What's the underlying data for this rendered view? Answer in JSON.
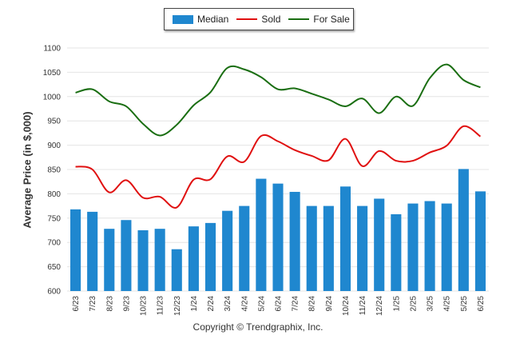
{
  "chart_data": {
    "type": "bar",
    "title": "",
    "xlabel": "",
    "ylabel": "Average Price (in $,000)",
    "ylim": [
      600,
      1100
    ],
    "yticks": [
      600,
      650,
      700,
      750,
      800,
      850,
      900,
      950,
      1000,
      1050,
      1100
    ],
    "grid": true,
    "legend_position": "top-center",
    "categories": [
      "6/23",
      "7/23",
      "8/23",
      "9/23",
      "10/23",
      "11/23",
      "12/23",
      "1/24",
      "2/24",
      "3/24",
      "4/24",
      "5/24",
      "6/24",
      "7/24",
      "8/24",
      "9/24",
      "10/24",
      "11/24",
      "12/24",
      "1/25",
      "2/25",
      "3/25",
      "4/25",
      "5/25",
      "6/25"
    ],
    "series": [
      {
        "name": "Median",
        "type": "bar",
        "color": "#1f87cf",
        "values": [
          768,
          763,
          728,
          746,
          725,
          728,
          686,
          733,
          740,
          765,
          775,
          831,
          821,
          804,
          775,
          775,
          815,
          775,
          790,
          758,
          780,
          785,
          780,
          851,
          805
        ]
      },
      {
        "name": "Sold",
        "type": "line",
        "color": "#e01010",
        "values": [
          856,
          850,
          803,
          828,
          792,
          794,
          772,
          829,
          830,
          877,
          866,
          919,
          908,
          890,
          878,
          869,
          913,
          857,
          888,
          868,
          868,
          885,
          899,
          939,
          918
        ]
      },
      {
        "name": "For Sale",
        "type": "line",
        "color": "#1a6e12",
        "values": [
          1008,
          1015,
          990,
          980,
          944,
          920,
          942,
          982,
          1009,
          1059,
          1056,
          1040,
          1015,
          1017,
          1006,
          994,
          980,
          996,
          966,
          1000,
          981,
          1038,
          1066,
          1034,
          1019
        ]
      }
    ]
  },
  "legend": {
    "median": "Median",
    "sold": "Sold",
    "for_sale": "For Sale"
  },
  "footer": {
    "copyright": "Copyright © Trendgraphix, Inc."
  }
}
